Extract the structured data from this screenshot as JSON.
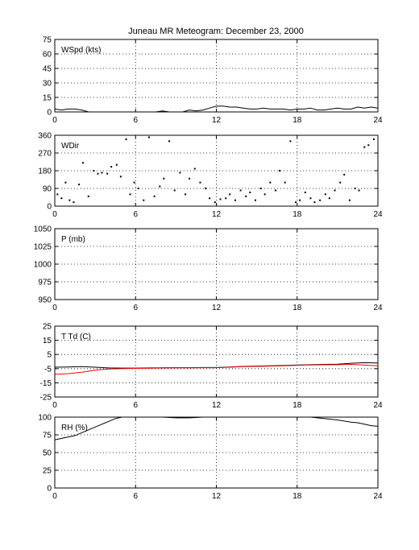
{
  "title": "Juneau MR Meteogram:   December 23, 2000",
  "chart_data": [
    {
      "id": "wspd",
      "type": "line",
      "panel_label": "WSpd (kts)",
      "xlim": [
        0,
        24
      ],
      "ylim": [
        0,
        75
      ],
      "x_ticks": [
        0,
        6,
        12,
        18,
        24
      ],
      "y_ticks": [
        0,
        15,
        30,
        45,
        60,
        75
      ],
      "grid": true,
      "series": [
        {
          "color": "#000000",
          "style": "line",
          "x": [
            0,
            0.5,
            1,
            1.5,
            2,
            2.5,
            3,
            3.5,
            4,
            4.5,
            5,
            5.5,
            6,
            6.5,
            7,
            7.5,
            8,
            8.5,
            9,
            9.5,
            10,
            10.5,
            11,
            11.5,
            12,
            12.5,
            13,
            13.5,
            14,
            14.5,
            15,
            15.5,
            16,
            16.5,
            17,
            17.5,
            18,
            18.5,
            19,
            19.5,
            20,
            20.5,
            21,
            21.5,
            22,
            22.5,
            23,
            23.5,
            24
          ],
          "y": [
            3,
            2,
            3,
            3,
            2,
            0,
            0,
            0,
            0,
            0,
            0,
            0,
            0,
            0,
            0,
            0,
            1,
            0,
            0,
            0,
            2,
            1,
            2,
            4,
            6,
            6,
            5,
            5,
            4,
            3,
            3,
            4,
            3,
            3,
            3,
            2,
            3,
            3,
            4,
            2,
            2,
            3,
            4,
            3,
            3,
            5,
            4,
            5,
            4
          ]
        }
      ]
    },
    {
      "id": "wdir",
      "type": "scatter",
      "panel_label": "WDir",
      "xlim": [
        0,
        24
      ],
      "ylim": [
        0,
        360
      ],
      "x_ticks": [
        0,
        6,
        12,
        18,
        24
      ],
      "y_ticks": [
        0,
        90,
        180,
        270,
        360
      ],
      "grid": true,
      "series": [
        {
          "color": "#000000",
          "style": "dots",
          "x": [
            0.2,
            0.5,
            0.8,
            1.1,
            1.4,
            1.8,
            2.1,
            2.5,
            2.9,
            3.2,
            3.5,
            3.9,
            4.2,
            4.6,
            4.9,
            5.3,
            5.6,
            5.9,
            6.2,
            6.6,
            7.0,
            7.4,
            7.8,
            8.1,
            8.5,
            8.9,
            9.3,
            9.7,
            10.0,
            10.4,
            10.8,
            11.2,
            11.5,
            11.9,
            12.3,
            12.7,
            13.0,
            13.4,
            13.8,
            14.2,
            14.5,
            14.9,
            15.3,
            15.6,
            16.0,
            16.4,
            16.7,
            17.1,
            17.5,
            17.9,
            18.2,
            18.6,
            19.0,
            19.3,
            19.7,
            20.1,
            20.4,
            20.8,
            21.2,
            21.5,
            21.9,
            22.3,
            22.6,
            23.0,
            23.3,
            23.7
          ],
          "y": [
            60,
            40,
            120,
            30,
            20,
            110,
            220,
            50,
            180,
            165,
            170,
            165,
            200,
            210,
            150,
            340,
            60,
            120,
            90,
            30,
            350,
            50,
            100,
            140,
            330,
            80,
            170,
            60,
            140,
            190,
            120,
            90,
            40,
            20,
            35,
            40,
            60,
            30,
            80,
            50,
            70,
            30,
            90,
            60,
            120,
            80,
            180,
            120,
            330,
            20,
            30,
            70,
            40,
            20,
            30,
            60,
            40,
            80,
            120,
            160,
            30,
            90,
            80,
            300,
            310,
            340
          ]
        }
      ]
    },
    {
      "id": "pressure",
      "type": "line",
      "panel_label": "P (mb)",
      "xlim": [
        0,
        24
      ],
      "ylim": [
        950,
        1050
      ],
      "x_ticks": [
        0,
        6,
        12,
        18,
        24
      ],
      "y_ticks": [
        950,
        975,
        1000,
        1025,
        1050
      ],
      "grid": true,
      "series": []
    },
    {
      "id": "temp",
      "type": "line",
      "panel_label": "T Td (C)",
      "xlim": [
        0,
        24
      ],
      "ylim": [
        -25,
        25
      ],
      "x_ticks": [
        0,
        6,
        12,
        18,
        24
      ],
      "y_ticks": [
        -25,
        -15,
        -5,
        5,
        15,
        25
      ],
      "grid": true,
      "series": [
        {
          "color": "#000000",
          "style": "line",
          "x": [
            0,
            1,
            2,
            3,
            4,
            5,
            6,
            7,
            8,
            9,
            10,
            11,
            12,
            13,
            14,
            15,
            16,
            17,
            18,
            19,
            20,
            21,
            22,
            23,
            24
          ],
          "y": [
            -4,
            -3.8,
            -3.5,
            -4,
            -4.5,
            -4.6,
            -4.6,
            -4.5,
            -4.4,
            -4.3,
            -4.3,
            -4.2,
            -4.2,
            -3.8,
            -3.4,
            -3.2,
            -3,
            -2.8,
            -2.4,
            -2.2,
            -2,
            -1.8,
            -1.2,
            -0.8,
            -1
          ]
        },
        {
          "color": "#ff0000",
          "style": "line",
          "x": [
            0,
            1,
            2,
            3,
            4,
            5,
            6,
            7,
            8,
            9,
            10,
            11,
            12,
            13,
            14,
            15,
            16,
            17,
            18,
            19,
            20,
            21,
            22,
            23,
            24
          ],
          "y": [
            -9,
            -8.5,
            -7.5,
            -6,
            -5.2,
            -5,
            -4.8,
            -4.7,
            -4.5,
            -4.4,
            -4.4,
            -4.3,
            -4.3,
            -4.0,
            -3.6,
            -3.4,
            -3.2,
            -3.0,
            -2.6,
            -2.4,
            -2.3,
            -2.2,
            -2.0,
            -2.5,
            -3
          ]
        }
      ]
    },
    {
      "id": "rh",
      "type": "line",
      "panel_label": "RH (%)",
      "xlim": [
        0,
        24
      ],
      "ylim": [
        0,
        100
      ],
      "x_ticks": [
        0,
        6,
        12,
        18,
        24
      ],
      "y_ticks": [
        0,
        25,
        50,
        75,
        100
      ],
      "grid": true,
      "series": [
        {
          "color": "#000000",
          "style": "line",
          "x": [
            0,
            0.5,
            1,
            1.5,
            2,
            2.5,
            3,
            3.5,
            4,
            4.5,
            5,
            6,
            7,
            8,
            9,
            10,
            11,
            12,
            13,
            14,
            15,
            16,
            17,
            18,
            19,
            20,
            21,
            22,
            22.5,
            23,
            23.5,
            24
          ],
          "y": [
            68,
            70,
            72,
            74,
            78,
            82,
            86,
            90,
            94,
            98,
            100,
            100,
            100,
            100,
            99,
            99,
            100,
            100,
            100,
            100,
            100,
            100,
            100,
            100,
            100,
            98,
            96,
            93,
            92,
            90,
            88,
            87
          ]
        }
      ]
    }
  ]
}
